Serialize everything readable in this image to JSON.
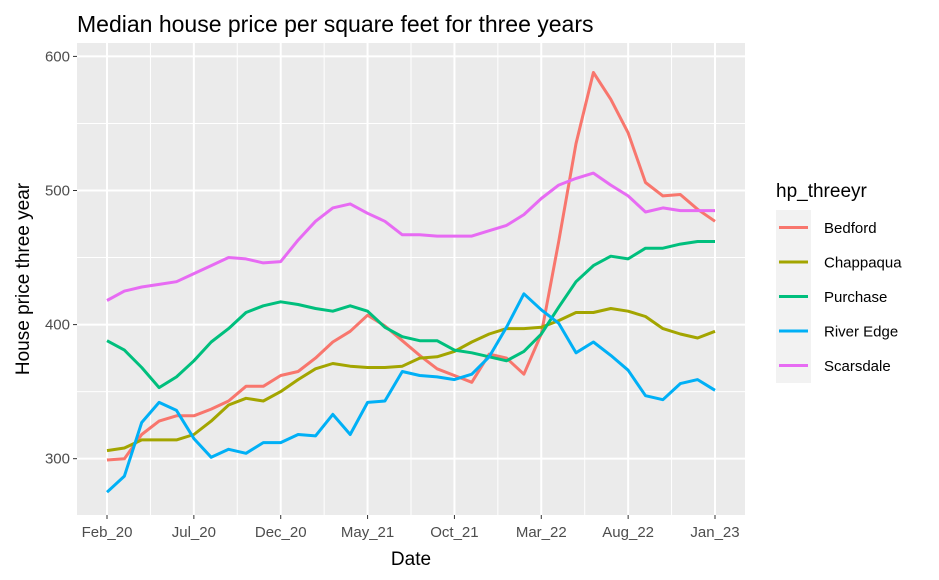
{
  "chart_data": {
    "type": "line",
    "title": "Median house price per square feet for three years",
    "xlabel": "Date",
    "ylabel": "House price three year",
    "ylim": [
      258,
      610
    ],
    "yticks": [
      300,
      400,
      500,
      600
    ],
    "xticks": [
      {
        "i": 0,
        "label": "Feb_20"
      },
      {
        "i": 5,
        "label": "Jul_20"
      },
      {
        "i": 10,
        "label": "Dec_20"
      },
      {
        "i": 15,
        "label": "May_21"
      },
      {
        "i": 20,
        "label": "Oct_21"
      },
      {
        "i": 25,
        "label": "Mar_22"
      },
      {
        "i": 30,
        "label": "Aug_22"
      },
      {
        "i": 35,
        "label": "Jan_23"
      }
    ],
    "grid": true,
    "legend_title": "hp_threeyr",
    "legend_position": "right",
    "series": [
      {
        "name": "Bedford",
        "color": "#F8766D",
        "values": [
          299,
          300,
          318,
          328,
          332,
          332,
          337,
          343,
          354,
          354,
          362,
          365,
          375,
          387,
          395,
          407,
          399,
          388,
          377,
          367,
          362,
          357,
          378,
          375,
          363,
          393,
          462,
          535,
          588,
          568,
          543,
          506,
          496,
          497,
          486,
          477
        ]
      },
      {
        "name": "Chappaqua",
        "color": "#A3A500",
        "values": [
          306,
          308,
          314,
          314,
          314,
          318,
          328,
          340,
          345,
          343,
          350,
          359,
          367,
          371,
          369,
          368,
          368,
          369,
          375,
          376,
          380,
          387,
          393,
          397,
          397,
          398,
          403,
          409,
          409,
          412,
          410,
          406,
          397,
          393,
          390,
          395
        ]
      },
      {
        "name": "Purchase",
        "color": "#00BF7D",
        "values": [
          388,
          381,
          368,
          353,
          361,
          373,
          387,
          397,
          409,
          414,
          417,
          415,
          412,
          410,
          414,
          410,
          398,
          391,
          388,
          388,
          381,
          379,
          376,
          373,
          380,
          393,
          413,
          432,
          444,
          451,
          449,
          457,
          457,
          460,
          462,
          462
        ]
      },
      {
        "name": "River Edge",
        "color": "#00B0F6",
        "values": [
          275,
          287,
          327,
          342,
          336,
          315,
          301,
          307,
          304,
          312,
          312,
          318,
          317,
          333,
          318,
          342,
          343,
          365,
          362,
          361,
          359,
          363,
          376,
          398,
          423,
          411,
          401,
          379,
          387,
          377,
          366,
          347,
          344,
          356,
          359,
          351
        ]
      },
      {
        "name": "Scarsdale",
        "color": "#E76BF3",
        "values": [
          418,
          425,
          428,
          430,
          432,
          438,
          444,
          450,
          449,
          446,
          447,
          463,
          477,
          487,
          490,
          483,
          477,
          467,
          467,
          466,
          466,
          466,
          470,
          474,
          482,
          494,
          504,
          509,
          513,
          504,
          496,
          484,
          487,
          485,
          485,
          485
        ]
      }
    ]
  }
}
